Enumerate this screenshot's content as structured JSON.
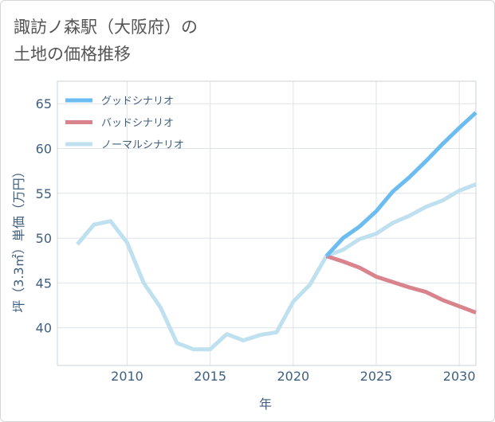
{
  "title_lines": [
    "諏訪ノ森駅（大阪府）の",
    "土地の価格推移"
  ],
  "chart_data": {
    "type": "line",
    "title": "諏訪ノ森駅（大阪府）の土地の価格推移",
    "xlabel": "年",
    "ylabel": "坪（3.3㎡）単価（万円）",
    "xlim": [
      2005.8,
      2031
    ],
    "ylim": [
      35.8,
      67.5
    ],
    "xticks": [
      2010,
      2015,
      2020,
      2025,
      2030
    ],
    "yticks": [
      40,
      45,
      50,
      55,
      60,
      65
    ],
    "grid": true,
    "legend_position": "top-left",
    "series": [
      {
        "name": "グッドシナリオ",
        "color": "#6bbcf0",
        "x": [
          2022,
          2023,
          2024,
          2025,
          2026,
          2027,
          2028,
          2029,
          2030,
          2031
        ],
        "values": [
          48.0,
          50.0,
          51.3,
          53.0,
          55.2,
          56.8,
          58.6,
          60.5,
          62.3,
          64.0
        ]
      },
      {
        "name": "バッドシナリオ",
        "color": "#d9848d",
        "x": [
          2022,
          2023,
          2024,
          2025,
          2026,
          2027,
          2028,
          2029,
          2030,
          2031
        ],
        "values": [
          48.0,
          47.4,
          46.7,
          45.7,
          45.1,
          44.5,
          44.0,
          43.1,
          42.4,
          41.7
        ]
      },
      {
        "name": "ノーマルシナリオ",
        "color": "#bfe0ef",
        "x": [
          2007,
          2008,
          2009,
          2010,
          2011,
          2012,
          2013,
          2014,
          2015,
          2016,
          2017,
          2018,
          2019,
          2020,
          2021,
          2022,
          2023,
          2024,
          2025,
          2026,
          2027,
          2028,
          2029,
          2030,
          2031
        ],
        "values": [
          49.3,
          51.5,
          51.9,
          49.5,
          45.0,
          42.3,
          38.3,
          37.6,
          37.6,
          39.3,
          38.6,
          39.2,
          39.5,
          42.9,
          44.8,
          48.0,
          48.7,
          49.9,
          50.5,
          51.7,
          52.5,
          53.5,
          54.2,
          55.3,
          56.0
        ]
      }
    ]
  }
}
